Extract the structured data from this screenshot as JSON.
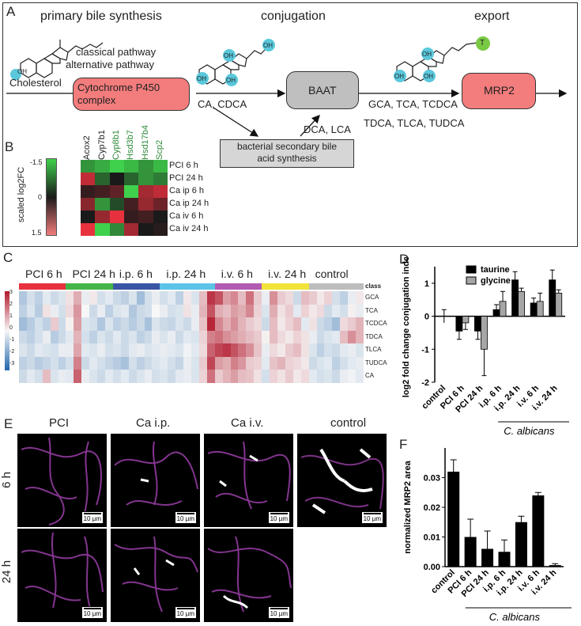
{
  "panel_A": {
    "letter": "A",
    "stage_primary": "primary bile synthesis",
    "stage_conjugation": "conjugation",
    "stage_export": "export",
    "cholesterol": "Cholesterol",
    "pathway1": "classical pathway",
    "pathway2": "alternative pathway",
    "enzyme_cyp": "Cytochrome P450 complex",
    "products1": "CA, CDCA",
    "enzyme_baat": "BAAT",
    "secondary_box": "bacterial secondary bile acid synthesis",
    "products2": "DCA, LCA",
    "products3a": "GCA, TCA, TCDCA",
    "products3b": "TDCA, TLCA, TUDCA",
    "transporter": "MRP2",
    "oh": "OH",
    "t_label": "T"
  },
  "panel_B": {
    "letter": "B",
    "colorbar_label": "scaled log2FC",
    "colorbar_ticks": [
      "-1.5",
      "0",
      "1.5"
    ],
    "genes": [
      "Acox2",
      "Cyp7b1",
      "Cyp8b1",
      "Hsd3b7",
      "Hsd17b4",
      "Scp2"
    ],
    "rows": [
      "PCI 6 h",
      "PCI 24 h",
      "Ca ip 6 h",
      "Ca ip 24 h",
      "Ca iv 6 h",
      "Ca iv 24 h"
    ],
    "values": [
      [
        -1.0,
        -1.2,
        -1.5,
        -1.3,
        -1.0,
        -1.3
      ],
      [
        1.2,
        -0.6,
        0.0,
        -0.6,
        -1.0,
        -0.8
      ],
      [
        0.2,
        0.3,
        0.5,
        -1.5,
        1.0,
        1.2
      ],
      [
        0.8,
        -1.0,
        -0.4,
        0.3,
        0.9,
        0.6
      ],
      [
        0.0,
        0.9,
        1.5,
        0.2,
        0.3,
        0.0
      ],
      [
        1.5,
        -1.5,
        -0.9,
        1.0,
        0.0,
        0.1
      ]
    ],
    "colors": {
      "low": "#3fd14c",
      "mid": "#1a1a1a",
      "high": "#e8313e"
    }
  },
  "panel_C": {
    "letter": "C",
    "groups": [
      "PCI 6 h",
      "PCI 24 h",
      "i.p. 6 h",
      "i.p. 24 h",
      "i.v. 6 h",
      "i.v. 24 h",
      "control"
    ],
    "group_colors": [
      "#e8313e",
      "#44b548",
      "#3a55a6",
      "#5cc3e8",
      "#b15bb3",
      "#f2e33a",
      "#bdbdbd"
    ],
    "class_label": "class",
    "rows": [
      "GCA",
      "TCA",
      "TCDCA",
      "TDCA",
      "TLCA",
      "TUDCA",
      "CA"
    ],
    "scale_ticks": [
      "3",
      "2",
      "1",
      "0",
      "-1",
      "-2",
      "-3"
    ],
    "colors": {
      "low": "#2166ac",
      "mid": "#f7f7f7",
      "high": "#b2182b"
    }
  },
  "panel_D": {
    "letter": "D",
    "chart_data": {
      "type": "bar",
      "ylabel": "log2 fold change conjugation index",
      "categories": [
        "control",
        "PCI 6 h",
        "PCI 24 h",
        "i.p. 6 h",
        "i.p. 24 h",
        "i.v. 6 h",
        "i.v. 24 h"
      ],
      "series": [
        {
          "name": "taurine",
          "values": [
            0.0,
            -0.45,
            -0.45,
            0.2,
            1.1,
            0.4,
            1.1
          ],
          "errors": [
            0.2,
            0.25,
            0.25,
            0.15,
            0.25,
            0.15,
            0.3
          ],
          "color": "#000000"
        },
        {
          "name": "glycine",
          "values": [
            0.0,
            -0.2,
            -1.0,
            0.45,
            0.75,
            0.45,
            0.7
          ],
          "errors": [
            0.0,
            0.2,
            0.8,
            0.3,
            0.1,
            0.25,
            0.1
          ],
          "color": "#a6a6a6"
        }
      ],
      "ylim": [
        -2,
        1.5
      ],
      "yticks": [
        "1",
        "0",
        "-1",
        "-2"
      ],
      "species_label": "C. albicans"
    }
  },
  "panel_E": {
    "letter": "E",
    "columns": [
      "PCI",
      "Ca i.p.",
      "Ca i.v.",
      "control"
    ],
    "rows": [
      "6 h",
      "24 h"
    ],
    "scale_bar": "10 µm"
  },
  "panel_F": {
    "letter": "F",
    "chart_data": {
      "type": "bar",
      "ylabel": "normalized MRP2 area",
      "categories": [
        "control",
        "PCI 6 h",
        "PCI 24 h",
        "i.p. 6 h",
        "i.p. 24 h",
        "i.v. 6 h",
        "i.v. 24 h"
      ],
      "values": [
        0.032,
        0.01,
        0.006,
        0.005,
        0.015,
        0.024,
        0.0005
      ],
      "errors": [
        0.004,
        0.006,
        0.006,
        0.004,
        0.002,
        0.001,
        0.0005
      ],
      "ylim": [
        0,
        0.04
      ],
      "yticks": [
        "0.03",
        "0.02",
        "0.01",
        "0.00"
      ],
      "species_label": "C. albicans",
      "bar_color": "#000000"
    }
  }
}
